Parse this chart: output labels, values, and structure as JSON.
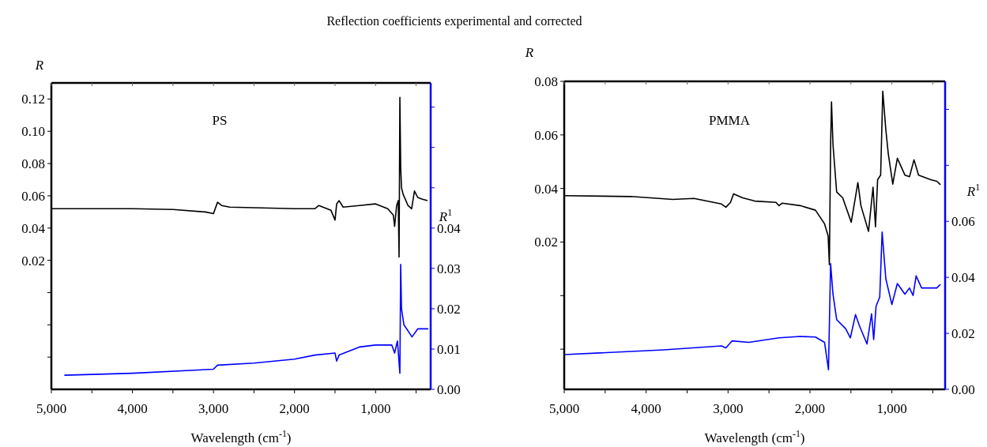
{
  "chart_data": [
    {
      "type": "line",
      "title": "Reflection coefficients experimental and corrected",
      "annotations": [
        "PS"
      ],
      "xlabel": "Wavelength (cm$^{-1}$)",
      "ylabel": "R",
      "y2label": "R$^{1}$",
      "xlim": [
        5000,
        320
      ],
      "xticks": [
        {
          "value": 5000,
          "label": "5,000"
        },
        {
          "value": 4500,
          "label": null
        },
        {
          "value": 4000,
          "label": "4,000"
        },
        {
          "value": 3500,
          "label": null
        },
        {
          "value": 3000,
          "label": "3,000"
        },
        {
          "value": 2500,
          "label": null
        },
        {
          "value": 2000,
          "label": "2,000"
        },
        {
          "value": 1500,
          "label": null
        },
        {
          "value": 1000,
          "label": "1,000"
        },
        {
          "value": 500,
          "label": null
        }
      ],
      "ylim": [
        -0.06,
        0.13
      ],
      "yticks": [
        {
          "value": -0.04,
          "label": null
        },
        {
          "value": -0.02,
          "label": null
        },
        {
          "value": 0,
          "label": null
        },
        0.02,
        0.04,
        0.06,
        0.08,
        {
          "value": 0.1,
          "label": "0.10"
        },
        0.12
      ],
      "y2lim": [
        0,
        0.076
      ],
      "y2ticks": [
        {
          "value": 0,
          "label": "0.00"
        },
        0.01,
        0.02,
        0.03,
        0.04,
        {
          "value": 0.05,
          "label": null
        },
        {
          "value": 0.06,
          "label": null
        },
        {
          "value": 0.07,
          "label": null
        }
      ],
      "series": [
        {
          "color": "#000000",
          "x": [
            5000,
            4000,
            3500,
            3100,
            3000,
            2950,
            2900,
            2800,
            2000,
            1750,
            1700,
            1550,
            1500,
            1480,
            1450,
            1400,
            1200,
            1000,
            850,
            780,
            765,
            740,
            720,
            710,
            700,
            690,
            680,
            660,
            600,
            555,
            520,
            480,
            430,
            360
          ],
          "values": [
            0.052,
            0.052,
            0.0515,
            0.05,
            0.049,
            0.056,
            0.054,
            0.053,
            0.052,
            0.052,
            0.054,
            0.051,
            0.045,
            0.055,
            0.057,
            0.053,
            0.054,
            0.055,
            0.052,
            0.048,
            0.041,
            0.054,
            0.057,
            0.022,
            0.121,
            0.078,
            0.065,
            0.061,
            0.054,
            0.052,
            0.063,
            0.059,
            0.058,
            0.057
          ]
        },
        {
          "color": "#0000ff",
          "axis": "y2",
          "x": [
            4840,
            4000,
            3000,
            2950,
            2500,
            2000,
            1750,
            1500,
            1480,
            1450,
            1200,
            1000,
            800,
            765,
            730,
            700,
            690,
            680,
            650,
            550,
            480,
            350
          ],
          "values": [
            0.0035,
            0.004,
            0.005,
            0.006,
            0.0065,
            0.0075,
            0.0085,
            0.009,
            0.007,
            0.0085,
            0.0105,
            0.011,
            0.011,
            0.009,
            0.012,
            0.004,
            0.031,
            0.02,
            0.016,
            0.013,
            0.015,
            0.015
          ]
        }
      ]
    },
    {
      "type": "line",
      "annotations": [
        "PMMA"
      ],
      "xlabel": "Wavelength (cm$^{-1}$)",
      "ylabel": "R",
      "y2label": "R$^{1}$",
      "xlim": [
        5000,
        350
      ],
      "xticks": [
        {
          "value": 5000,
          "label": "5,000"
        },
        {
          "value": 4500,
          "label": null
        },
        {
          "value": 4000,
          "label": "4,000"
        },
        {
          "value": 3500,
          "label": null
        },
        {
          "value": 3000,
          "label": "3,000"
        },
        {
          "value": 2500,
          "label": null
        },
        {
          "value": 2000,
          "label": "2,000"
        },
        {
          "value": 1500,
          "label": null
        },
        {
          "value": 1000,
          "label": "1,000"
        },
        {
          "value": 500,
          "label": null
        }
      ],
      "ylim": [
        -0.035,
        0.08
      ],
      "yticks": [
        {
          "value": -0.02,
          "label": null
        },
        {
          "value": 0,
          "label": null
        },
        0.02,
        0.04,
        0.06,
        0.08
      ],
      "y2lim": [
        0,
        0.11
      ],
      "y2ticks": [
        {
          "value": 0,
          "label": "0.00"
        },
        0.02,
        0.04,
        0.06,
        {
          "value": 0.08,
          "label": null
        },
        {
          "value": 0.1,
          "label": null
        }
      ],
      "series": [
        {
          "color": "#000000",
          "x": [
            5000,
            4190,
            3674,
            3415,
            3081,
            3026,
            2970,
            2933,
            2822,
            2674,
            2415,
            2378,
            2341,
            2119,
            1933,
            1822,
            1778,
            1763,
            1748,
            1737,
            1719,
            1674,
            1600,
            1496,
            1415,
            1378,
            1285,
            1230,
            1200,
            1174,
            1137,
            1111,
            1074,
            1044,
            989,
            933,
            841,
            785,
            730,
            674,
            526,
            452,
            407
          ],
          "values": [
            0.0373,
            0.037,
            0.0359,
            0.0363,
            0.0342,
            0.033,
            0.0348,
            0.038,
            0.0365,
            0.0353,
            0.0348,
            0.0336,
            0.0345,
            0.0336,
            0.0319,
            0.0268,
            0.0223,
            0.0115,
            0.0564,
            0.0723,
            0.0564,
            0.0387,
            0.0365,
            0.0274,
            0.0422,
            0.0336,
            0.024,
            0.0405,
            0.0257,
            0.0433,
            0.045,
            0.0763,
            0.062,
            0.053,
            0.0416,
            0.0513,
            0.045,
            0.0444,
            0.0507,
            0.045,
            0.0433,
            0.0427,
            0.0414
          ]
        },
        {
          "color": "#0000ff",
          "axis": "y2",
          "x": [
            5000,
            3785,
            3081,
            3026,
            2952,
            2748,
            2378,
            2119,
            1933,
            1822,
            1774,
            1748,
            1719,
            1674,
            1563,
            1507,
            1444,
            1396,
            1304,
            1248,
            1222,
            1193,
            1148,
            1119,
            1074,
            1000,
            933,
            841,
            785,
            741,
            704,
            637,
            452,
            407
          ],
          "values": [
            0.0124,
            0.0141,
            0.0155,
            0.0148,
            0.0173,
            0.0168,
            0.0184,
            0.0189,
            0.0187,
            0.0168,
            0.007,
            0.0449,
            0.034,
            0.0249,
            0.0216,
            0.0184,
            0.0267,
            0.0227,
            0.0162,
            0.027,
            0.0178,
            0.0297,
            0.033,
            0.0562,
            0.0395,
            0.0303,
            0.0378,
            0.034,
            0.0362,
            0.0335,
            0.0405,
            0.0362,
            0.0362,
            0.0375
          ]
        }
      ]
    }
  ]
}
